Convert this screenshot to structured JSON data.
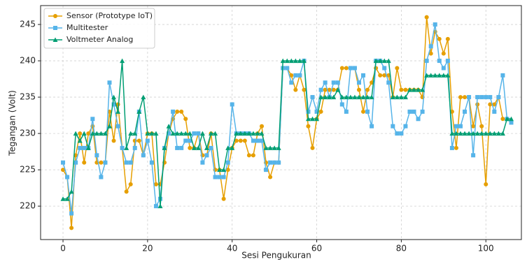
{
  "chart_data": {
    "type": "line",
    "x_label": "Sesi Pengukuran",
    "y_label": "Tegangan (Volt)",
    "x": [
      0,
      1,
      2,
      3,
      4,
      5,
      6,
      7,
      8,
      9,
      10,
      11,
      12,
      13,
      14,
      15,
      16,
      17,
      18,
      19,
      20,
      21,
      22,
      23,
      24,
      25,
      26,
      27,
      28,
      29,
      30,
      31,
      32,
      33,
      34,
      35,
      36,
      37,
      38,
      39,
      40,
      41,
      42,
      43,
      44,
      45,
      46,
      47,
      48,
      49,
      50,
      51,
      52,
      53,
      54,
      55,
      56,
      57,
      58,
      59,
      60,
      61,
      62,
      63,
      64,
      65,
      66,
      67,
      68,
      69,
      70,
      71,
      72,
      73,
      74,
      75,
      76,
      77,
      78,
      79,
      80,
      81,
      82,
      83,
      84,
      85,
      86,
      87,
      88,
      89,
      90,
      91,
      92,
      93,
      94,
      95,
      96,
      97,
      98,
      99,
      100,
      101,
      102,
      103,
      104,
      105,
      106
    ],
    "series": [
      {
        "name": "Sensor (Prototype IoT)",
        "color": "#E69F00",
        "marker": "circle",
        "values": [
          225,
          224,
          217,
          227,
          230,
          226,
          230,
          231,
          226,
          226,
          226,
          233,
          229,
          234,
          228,
          222,
          223,
          229,
          229,
          227,
          230,
          230,
          223,
          223,
          226,
          230,
          232,
          233,
          233,
          232,
          228,
          228,
          230,
          227,
          227,
          230,
          225,
          225,
          221,
          225,
          228,
          229,
          229,
          229,
          227,
          227,
          230,
          231,
          226,
          224,
          226,
          226,
          239,
          239,
          238,
          236,
          238,
          236,
          231,
          228,
          232,
          233,
          236,
          236,
          236,
          236,
          239,
          239,
          239,
          239,
          236,
          233,
          236,
          237,
          239,
          238,
          238,
          238,
          235,
          239,
          236,
          236,
          236,
          236,
          236,
          235,
          246,
          241,
          244,
          243,
          241,
          243,
          233,
          228,
          235,
          235,
          235,
          231,
          234,
          231,
          223,
          234,
          234,
          235,
          232,
          null,
          null
        ]
      },
      {
        "name": "Multitester",
        "color": "#56B4E9",
        "marker": "square",
        "values": [
          226,
          224,
          219,
          226,
          228,
          228,
          228,
          232,
          227,
          224,
          226,
          237,
          234,
          231,
          228,
          226,
          226,
          228,
          233,
          227,
          229,
          226,
          220,
          221,
          228,
          230,
          233,
          228,
          228,
          229,
          229,
          230,
          230,
          226,
          227,
          228,
          224,
          224,
          224,
          226,
          234,
          230,
          230,
          230,
          230,
          229,
          229,
          229,
          225,
          226,
          226,
          226,
          239,
          239,
          237,
          238,
          238,
          240,
          233,
          235,
          233,
          236,
          237,
          235,
          237,
          237,
          234,
          233,
          239,
          239,
          237,
          238,
          233,
          231,
          240,
          240,
          239,
          237,
          231,
          230,
          230,
          231,
          233,
          233,
          232,
          233,
          240,
          242,
          245,
          240,
          239,
          240,
          228,
          231,
          231,
          233,
          235,
          227,
          235,
          235,
          235,
          235,
          233,
          235,
          238,
          232,
          231.5
        ]
      },
      {
        "name": "Voltmeter Analog",
        "color": "#009E73",
        "marker": "triangle",
        "values": [
          221,
          221,
          222,
          230,
          229,
          230,
          228,
          230,
          230,
          230,
          230,
          231,
          235,
          233,
          240,
          228,
          230,
          230,
          233,
          235,
          230,
          230,
          230,
          220,
          228,
          231,
          230,
          230,
          230,
          230,
          230,
          228,
          228,
          230,
          228,
          230,
          230,
          225,
          225,
          228,
          228,
          230,
          230,
          230,
          230,
          230,
          230,
          230,
          228,
          228,
          228,
          228,
          240,
          240,
          240,
          240,
          240,
          240,
          232,
          232,
          232,
          235,
          235,
          235,
          235,
          236,
          235,
          235,
          235,
          235,
          235,
          235,
          235,
          235,
          240,
          240,
          240,
          240,
          235,
          235,
          235,
          235,
          236,
          236,
          236,
          236,
          238,
          238,
          238,
          238,
          238,
          238,
          230,
          230,
          230,
          230,
          230,
          230,
          230,
          230,
          230,
          230,
          230,
          230,
          230,
          232,
          232
        ]
      }
    ],
    "xlim": [
      -5.3,
      108.4
    ],
    "xticks": [
      0,
      20,
      40,
      60,
      80,
      100
    ],
    "ylim": [
      215.4,
      247.6
    ],
    "yticks": [
      220,
      225,
      230,
      235,
      240,
      245
    ],
    "grid": true,
    "legend": "upper left"
  }
}
